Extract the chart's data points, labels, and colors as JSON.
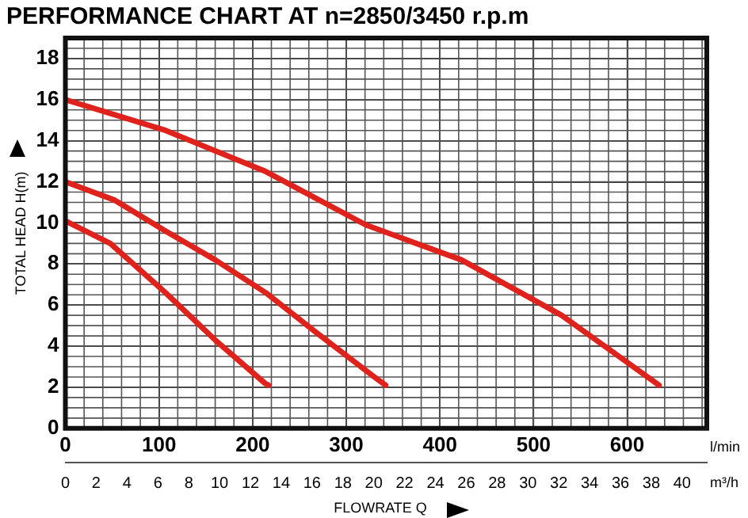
{
  "chart_data": {
    "type": "line",
    "title": "PERFORMANCE CHART AT n=2850/3450 r.p.m",
    "ylabel": "TOTAL HEAD H(m)",
    "xlabel": "l/min",
    "x2label": "m³/h",
    "annotations": [
      "FLOWRATE Q"
    ],
    "xlim": [
      0,
      685
    ],
    "xticks": [
      0,
      100,
      200,
      300,
      400,
      500,
      600
    ],
    "x2lim": [
      0,
      41.6
    ],
    "x2ticks": [
      0,
      2,
      4,
      6,
      8,
      10,
      12,
      14,
      16,
      18,
      20,
      22,
      24,
      26,
      28,
      30,
      32,
      34,
      36,
      38,
      40
    ],
    "ylim": [
      0,
      19
    ],
    "yticks": [
      0,
      2,
      4,
      6,
      8,
      10,
      12,
      14,
      16,
      18
    ],
    "grid": true,
    "legend": false,
    "marker": "none",
    "line_style": "solid",
    "series": [
      {
        "color": "#e0221c",
        "x": [
          0,
          48,
          107,
          160,
          213,
          217
        ],
        "values": [
          10.1,
          9.0,
          6.6,
          4.3,
          2.2,
          2.1
        ]
      },
      {
        "color": "#e0221c",
        "x": [
          0,
          53,
          107,
          160,
          214,
          267,
          330,
          342
        ],
        "values": [
          12.0,
          11.1,
          9.6,
          8.2,
          6.6,
          4.7,
          2.5,
          2.1
        ]
      },
      {
        "color": "#e0221c",
        "x": [
          0,
          107,
          214,
          321,
          423,
          530,
          634
        ],
        "values": [
          16.0,
          14.5,
          12.5,
          9.9,
          8.2,
          5.5,
          2.1
        ]
      }
    ]
  }
}
